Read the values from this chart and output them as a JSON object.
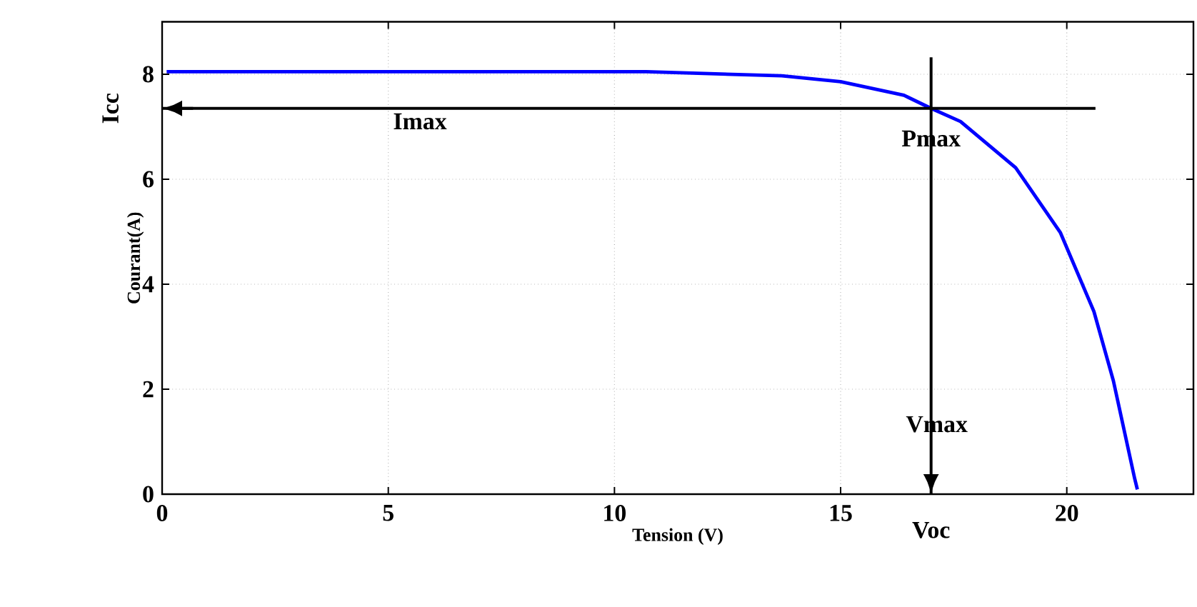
{
  "chart_data": {
    "type": "line",
    "xlabel": "Tension (V)",
    "ylabel": "Courant(A)",
    "x": [
      0.1,
      10.7,
      13.7,
      15.0,
      16.4,
      17.0,
      17.65,
      18.87,
      19.86,
      20.6,
      21.03,
      21.5,
      21.56
    ],
    "series": [
      {
        "color": "#0000ff",
        "values": [
          8.05,
          8.05,
          7.97,
          7.86,
          7.6,
          7.35,
          7.1,
          6.22,
          4.98,
          3.48,
          2.16,
          0.3,
          0.09
        ]
      }
    ],
    "xlim": [
      0,
      22.8
    ],
    "ylim": [
      0,
      9
    ],
    "xticks": [
      0,
      5,
      10,
      15,
      20
    ],
    "yticks": [
      0,
      2,
      4,
      6,
      8
    ],
    "grid": true,
    "marker": "none",
    "line_style": "solid",
    "ref_lines": [
      {
        "axis": "y",
        "value": 7.35,
        "label": "Imax",
        "color": "#000000"
      },
      {
        "axis": "x",
        "value": 17.0,
        "label": "Vmax",
        "color": "#000000"
      }
    ],
    "annotations": [
      "Icc",
      {
        "text": "Pmax",
        "x": 17.0,
        "y": 7.35
      },
      "Voc"
    ]
  }
}
